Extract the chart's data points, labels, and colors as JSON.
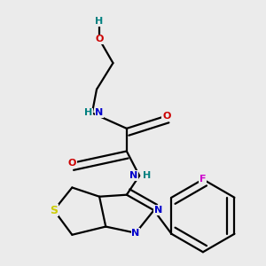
{
  "bg_color": "#ebebeb",
  "atom_colors": {
    "C": "#000000",
    "N": "#0000cc",
    "O": "#cc0000",
    "S": "#cccc00",
    "F": "#cc00cc",
    "H": "#008080"
  }
}
